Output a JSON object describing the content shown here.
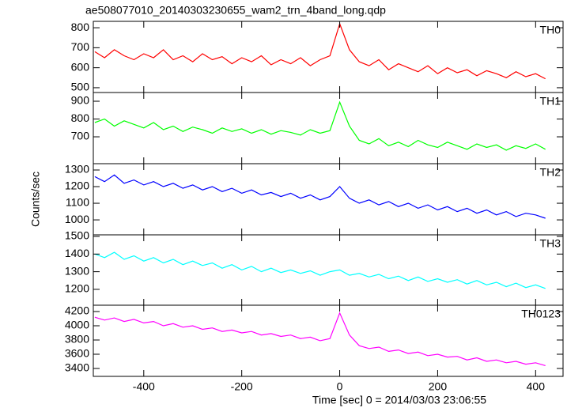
{
  "chart_data": [
    {
      "type": "line",
      "title": "ae508077010_20140303230655_wam2_trn_4band_long.qdp",
      "label": "TH0",
      "color": "#ff0000",
      "x": [
        -500,
        -480,
        -460,
        -440,
        -420,
        -400,
        -380,
        -360,
        -340,
        -320,
        -300,
        -280,
        -260,
        -240,
        -220,
        -200,
        -180,
        -160,
        -140,
        -120,
        -100,
        -80,
        -60,
        -40,
        -20,
        0,
        20,
        40,
        60,
        80,
        100,
        120,
        140,
        160,
        180,
        200,
        220,
        240,
        260,
        280,
        300,
        320,
        340,
        360,
        380,
        400,
        420
      ],
      "values": [
        680,
        650,
        690,
        660,
        640,
        670,
        650,
        690,
        640,
        660,
        630,
        670,
        640,
        655,
        620,
        650,
        630,
        660,
        615,
        640,
        620,
        650,
        610,
        640,
        660,
        820,
        690,
        630,
        610,
        640,
        590,
        620,
        600,
        580,
        610,
        570,
        600,
        575,
        590,
        560,
        585,
        570,
        550,
        580,
        555,
        570,
        545
      ],
      "xlim": [
        -503,
        456
      ],
      "xticks": [
        -400,
        -200,
        0,
        200,
        400
      ],
      "ylim": [
        476,
        832
      ],
      "yticks": [
        500,
        600,
        700,
        800
      ]
    },
    {
      "type": "line",
      "label": "TH1",
      "color": "#00ff00",
      "x": [
        -500,
        -480,
        -460,
        -440,
        -420,
        -400,
        -380,
        -360,
        -340,
        -320,
        -300,
        -280,
        -260,
        -240,
        -220,
        -200,
        -180,
        -160,
        -140,
        -120,
        -100,
        -80,
        -60,
        -40,
        -20,
        0,
        20,
        40,
        60,
        80,
        100,
        120,
        140,
        160,
        180,
        200,
        220,
        240,
        260,
        280,
        300,
        320,
        340,
        360,
        380,
        400,
        420
      ],
      "values": [
        780,
        800,
        760,
        790,
        770,
        750,
        780,
        740,
        760,
        730,
        755,
        740,
        720,
        750,
        730,
        745,
        720,
        740,
        715,
        735,
        725,
        710,
        740,
        720,
        735,
        895,
        760,
        680,
        660,
        690,
        650,
        670,
        645,
        680,
        655,
        640,
        670,
        650,
        630,
        660,
        640,
        655,
        625,
        650,
        635,
        660,
        630
      ],
      "xlim": [
        -503,
        456
      ],
      "xticks": [
        -400,
        -200,
        0,
        200,
        400
      ],
      "ylim": [
        549,
        949
      ],
      "yticks": [
        700,
        800,
        900
      ]
    },
    {
      "type": "line",
      "label": "TH2",
      "color": "#0000ff",
      "y_label": "Counts/sec",
      "x": [
        -500,
        -480,
        -460,
        -440,
        -420,
        -400,
        -380,
        -360,
        -340,
        -320,
        -300,
        -280,
        -260,
        -240,
        -220,
        -200,
        -180,
        -160,
        -140,
        -120,
        -100,
        -80,
        -60,
        -40,
        -20,
        0,
        20,
        40,
        60,
        80,
        100,
        120,
        140,
        160,
        180,
        200,
        220,
        240,
        260,
        280,
        300,
        320,
        340,
        360,
        380,
        400,
        420
      ],
      "values": [
        1260,
        1230,
        1270,
        1220,
        1240,
        1210,
        1230,
        1200,
        1220,
        1190,
        1210,
        1180,
        1200,
        1170,
        1190,
        1160,
        1180,
        1150,
        1165,
        1140,
        1160,
        1130,
        1150,
        1120,
        1140,
        1200,
        1130,
        1100,
        1120,
        1090,
        1110,
        1080,
        1100,
        1070,
        1090,
        1060,
        1080,
        1050,
        1070,
        1040,
        1060,
        1030,
        1050,
        1020,
        1040,
        1030,
        1010
      ],
      "xlim": [
        -503,
        456
      ],
      "xticks": [
        -400,
        -200,
        0,
        200,
        400
      ],
      "ylim": [
        910,
        1338
      ],
      "yticks": [
        1000,
        1100,
        1200,
        1300
      ]
    },
    {
      "type": "line",
      "label": "TH3",
      "color": "#00ffff",
      "x": [
        -500,
        -480,
        -460,
        -440,
        -420,
        -400,
        -380,
        -360,
        -340,
        -320,
        -300,
        -280,
        -260,
        -240,
        -220,
        -200,
        -180,
        -160,
        -140,
        -120,
        -100,
        -80,
        -60,
        -40,
        -20,
        0,
        20,
        40,
        60,
        80,
        100,
        120,
        140,
        160,
        180,
        200,
        220,
        240,
        260,
        280,
        300,
        320,
        340,
        360,
        380,
        400,
        420
      ],
      "values": [
        1400,
        1380,
        1410,
        1370,
        1390,
        1360,
        1380,
        1350,
        1370,
        1340,
        1360,
        1335,
        1350,
        1320,
        1340,
        1310,
        1330,
        1300,
        1320,
        1295,
        1310,
        1290,
        1305,
        1280,
        1300,
        1310,
        1280,
        1290,
        1270,
        1285,
        1260,
        1275,
        1250,
        1270,
        1245,
        1260,
        1240,
        1255,
        1230,
        1250,
        1225,
        1240,
        1215,
        1235,
        1210,
        1225,
        1205
      ],
      "xlim": [
        -503,
        456
      ],
      "xticks": [
        -400,
        -200,
        0,
        200,
        400
      ],
      "ylim": [
        1110,
        1509
      ],
      "yticks": [
        1200,
        1300,
        1400,
        1500
      ]
    },
    {
      "type": "line",
      "label": "TH0123",
      "color": "#ff00ff",
      "x_label": "Time [sec] 0 = 2014/03/03 23:06:55",
      "x": [
        -500,
        -480,
        -460,
        -440,
        -420,
        -400,
        -380,
        -360,
        -340,
        -320,
        -300,
        -280,
        -260,
        -240,
        -220,
        -200,
        -180,
        -160,
        -140,
        -120,
        -100,
        -80,
        -60,
        -40,
        -20,
        0,
        20,
        40,
        60,
        80,
        100,
        120,
        140,
        160,
        180,
        200,
        220,
        240,
        260,
        280,
        300,
        320,
        340,
        360,
        380,
        400,
        420
      ],
      "values": [
        4120,
        4080,
        4110,
        4060,
        4090,
        4040,
        4060,
        4000,
        4030,
        3980,
        4000,
        3950,
        3970,
        3920,
        3940,
        3900,
        3920,
        3870,
        3890,
        3850,
        3870,
        3820,
        3840,
        3790,
        3820,
        4180,
        3870,
        3720,
        3680,
        3700,
        3640,
        3660,
        3610,
        3630,
        3580,
        3600,
        3560,
        3570,
        3520,
        3550,
        3500,
        3520,
        3480,
        3500,
        3460,
        3480,
        3440
      ],
      "xlim": [
        -503,
        456
      ],
      "xticks": [
        -400,
        -200,
        0,
        200,
        400
      ],
      "ylim": [
        3289,
        4289
      ],
      "yticks": [
        3400,
        3600,
        3800,
        4000,
        4200
      ]
    }
  ]
}
